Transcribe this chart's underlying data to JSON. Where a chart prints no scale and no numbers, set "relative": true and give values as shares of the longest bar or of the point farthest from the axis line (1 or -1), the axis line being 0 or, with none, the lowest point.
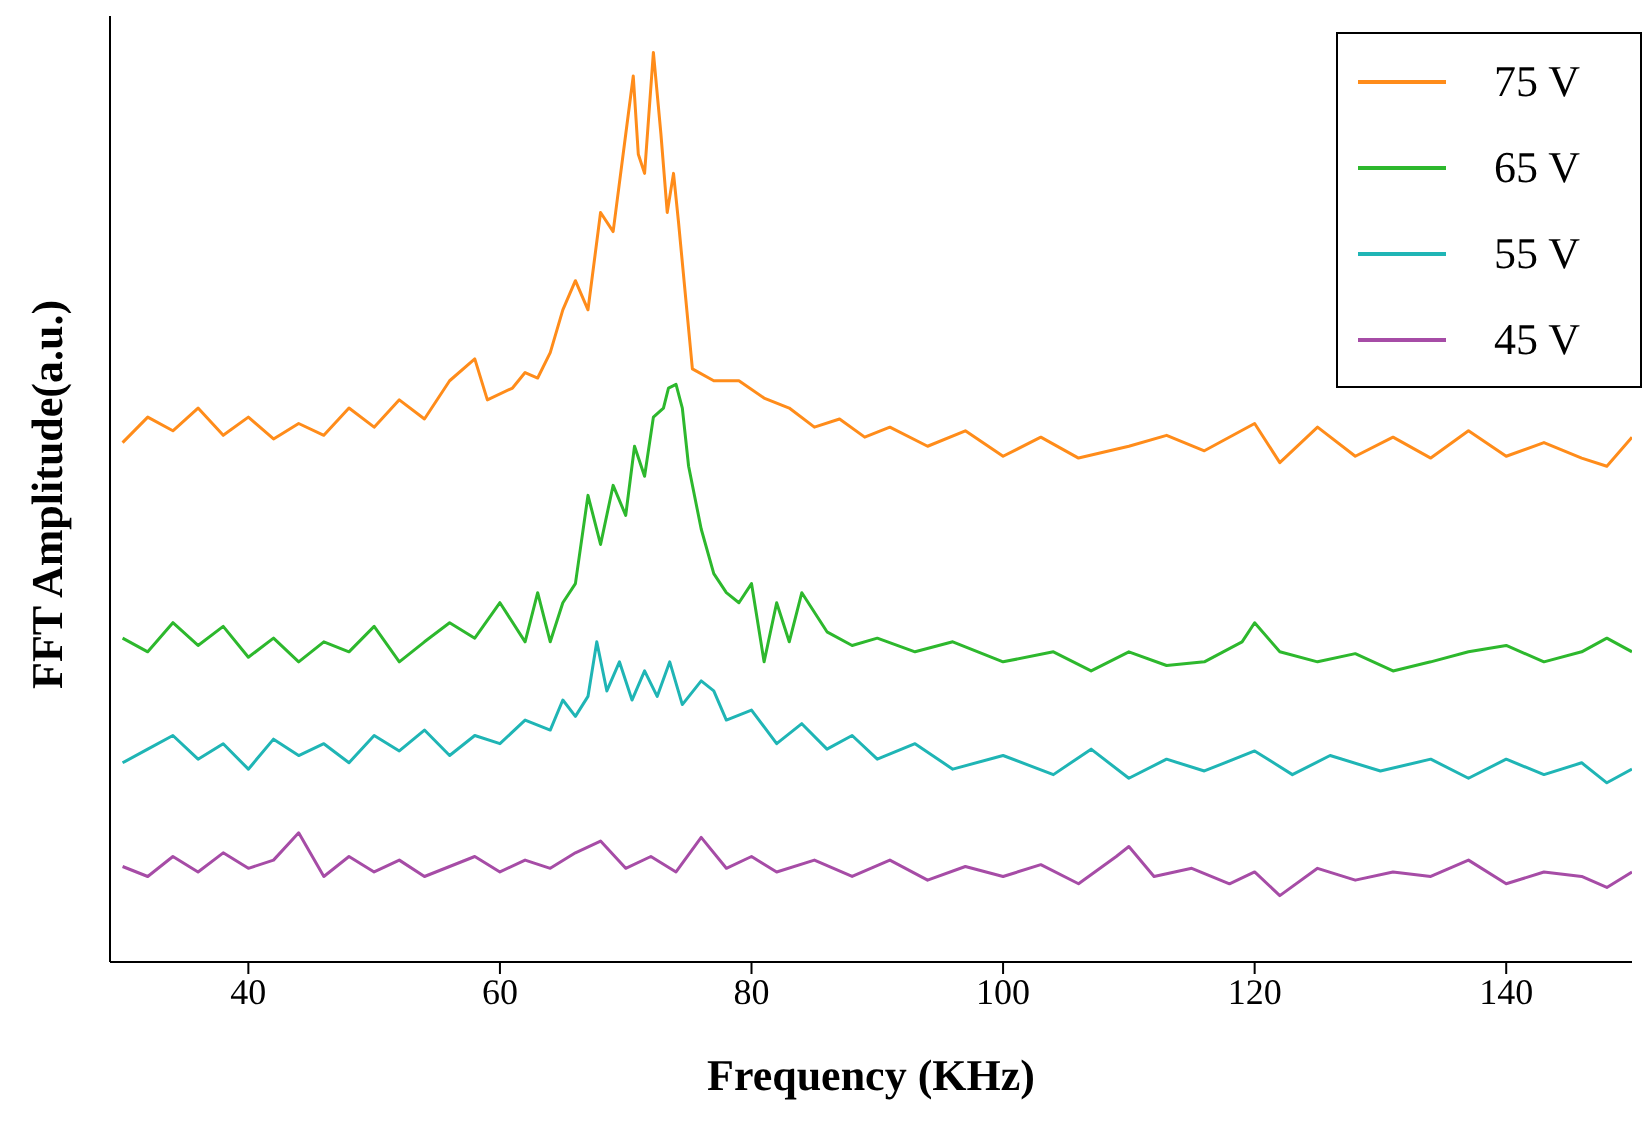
{
  "chart_data": {
    "type": "line",
    "xlabel": "Frequency (KHz)",
    "ylabel": "FFT Amplitude(a.u.)",
    "relative": true,
    "xlim": [
      29,
      150
    ],
    "xticks": [
      40,
      60,
      80,
      100,
      120,
      140
    ],
    "grid": false,
    "legend": "top right",
    "marker": "none",
    "line_style": "solid",
    "series": [
      {
        "name": "75 V",
        "color": "#ff8c1a",
        "x": [
          30,
          32,
          34,
          36,
          38,
          40,
          42,
          44,
          46,
          48,
          50,
          52,
          54,
          56,
          58,
          59,
          61,
          62,
          63,
          64,
          65,
          66,
          67,
          68,
          69,
          70,
          70.6,
          71,
          71.5,
          72.2,
          72.8,
          73.3,
          73.8,
          74.2,
          75.3,
          77,
          79,
          81,
          83,
          85,
          87,
          89,
          91,
          94,
          97,
          100,
          103,
          106,
          110,
          113,
          116,
          120,
          122,
          125,
          128,
          131,
          134,
          137,
          140,
          143,
          146,
          148,
          150
        ],
        "values": [
          0.571,
          0.599,
          0.584,
          0.609,
          0.579,
          0.599,
          0.575,
          0.592,
          0.579,
          0.609,
          0.588,
          0.618,
          0.597,
          0.639,
          0.663,
          0.618,
          0.631,
          0.648,
          0.642,
          0.67,
          0.717,
          0.749,
          0.717,
          0.824,
          0.803,
          0.91,
          0.974,
          0.888,
          0.867,
          1,
          0.91,
          0.824,
          0.867,
          0.813,
          0.652,
          0.639,
          0.639,
          0.62,
          0.609,
          0.588,
          0.597,
          0.577,
          0.588,
          0.567,
          0.584,
          0.556,
          0.577,
          0.554,
          0.567,
          0.579,
          0.562,
          0.592,
          0.549,
          0.588,
          0.556,
          0.577,
          0.554,
          0.584,
          0.556,
          0.571,
          0.554,
          0.545,
          0.577
        ]
      },
      {
        "name": "65 V",
        "color": "#2db82d",
        "x": [
          30,
          32,
          34,
          36,
          38,
          40,
          42,
          44,
          46,
          48,
          50,
          52,
          54,
          56,
          58,
          60,
          62,
          63,
          64,
          65,
          66,
          67,
          68,
          69,
          70,
          70.7,
          71.5,
          72.2,
          73,
          73.4,
          74,
          74.5,
          75,
          76,
          77,
          78,
          79,
          80,
          81,
          82,
          83,
          84,
          86,
          88,
          90,
          93,
          96,
          100,
          104,
          107,
          110,
          113,
          116,
          119,
          120,
          122,
          125,
          128,
          131,
          134,
          137,
          140,
          143,
          146,
          148,
          150
        ],
        "values": [
          0.356,
          0.341,
          0.373,
          0.348,
          0.369,
          0.335,
          0.356,
          0.33,
          0.352,
          0.341,
          0.369,
          0.33,
          0.352,
          0.373,
          0.356,
          0.395,
          0.352,
          0.406,
          0.352,
          0.395,
          0.416,
          0.513,
          0.459,
          0.524,
          0.491,
          0.567,
          0.534,
          0.599,
          0.609,
          0.631,
          0.635,
          0.609,
          0.545,
          0.476,
          0.427,
          0.406,
          0.395,
          0.416,
          0.33,
          0.395,
          0.352,
          0.406,
          0.363,
          0.348,
          0.356,
          0.341,
          0.352,
          0.33,
          0.341,
          0.32,
          0.341,
          0.326,
          0.33,
          0.352,
          0.373,
          0.341,
          0.33,
          0.339,
          0.32,
          0.33,
          0.341,
          0.348,
          0.33,
          0.341,
          0.356,
          0.341
        ]
      },
      {
        "name": "55 V",
        "color": "#1fb5b5",
        "x": [
          30,
          32,
          34,
          36,
          38,
          40,
          42,
          44,
          46,
          48,
          50,
          52,
          54,
          56,
          58,
          60,
          62,
          64,
          65,
          66,
          67,
          67.7,
          68.5,
          69.5,
          70.5,
          71.5,
          72.5,
          73.5,
          74.5,
          76,
          77,
          78,
          80,
          82,
          84,
          86,
          88,
          90,
          93,
          96,
          100,
          104,
          107,
          110,
          113,
          116,
          120,
          123,
          126,
          130,
          134,
          137,
          140,
          143,
          146,
          148,
          150
        ],
        "values": [
          0.219,
          0.234,
          0.249,
          0.223,
          0.24,
          0.212,
          0.245,
          0.227,
          0.24,
          0.219,
          0.249,
          0.232,
          0.255,
          0.227,
          0.249,
          0.24,
          0.266,
          0.255,
          0.288,
          0.27,
          0.292,
          0.352,
          0.298,
          0.33,
          0.288,
          0.32,
          0.292,
          0.33,
          0.283,
          0.309,
          0.298,
          0.266,
          0.277,
          0.24,
          0.262,
          0.234,
          0.249,
          0.223,
          0.24,
          0.212,
          0.227,
          0.206,
          0.234,
          0.202,
          0.223,
          0.21,
          0.232,
          0.206,
          0.227,
          0.21,
          0.223,
          0.202,
          0.223,
          0.206,
          0.219,
          0.197,
          0.212
        ]
      },
      {
        "name": "45 V",
        "color": "#a64ca6",
        "x": [
          30,
          32,
          34,
          36,
          38,
          40,
          42,
          44,
          46,
          48,
          50,
          52,
          54,
          56,
          58,
          60,
          62,
          64,
          66,
          68,
          70,
          72,
          74,
          76,
          78,
          80,
          82,
          85,
          88,
          91,
          94,
          97,
          100,
          103,
          106,
          109,
          110,
          112,
          115,
          118,
          120,
          122,
          125,
          128,
          131,
          134,
          137,
          140,
          143,
          146,
          148,
          150
        ],
        "values": [
          0.105,
          0.094,
          0.116,
          0.099,
          0.12,
          0.103,
          0.112,
          0.142,
          0.094,
          0.116,
          0.099,
          0.112,
          0.094,
          0.105,
          0.116,
          0.099,
          0.112,
          0.103,
          0.12,
          0.133,
          0.103,
          0.116,
          0.099,
          0.137,
          0.103,
          0.116,
          0.099,
          0.112,
          0.094,
          0.112,
          0.09,
          0.105,
          0.094,
          0.107,
          0.086,
          0.116,
          0.127,
          0.094,
          0.103,
          0.086,
          0.099,
          0.073,
          0.103,
          0.09,
          0.099,
          0.094,
          0.112,
          0.086,
          0.099,
          0.094,
          0.082,
          0.099
        ]
      }
    ]
  }
}
